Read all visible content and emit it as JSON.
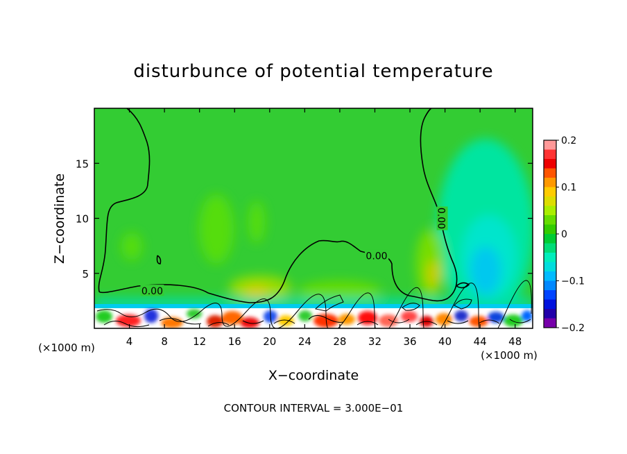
{
  "chart_data": {
    "type": "heatmap",
    "title": "disturbunce of potential temperature",
    "xlabel": "X−coordinate",
    "ylabel": "Z−coordinate",
    "x_unit_left": "(×1000 m)",
    "x_unit_right": "(×1000 m)",
    "footer": "CONTOUR INTERVAL = 3.000E−01",
    "xlim": [
      0,
      50
    ],
    "ylim": [
      0,
      20
    ],
    "x_ticks": [
      4,
      8,
      12,
      16,
      20,
      24,
      28,
      32,
      36,
      40,
      44,
      48
    ],
    "y_ticks": [
      5,
      10,
      15
    ],
    "contour_labels": [
      {
        "text": "0.00",
        "x": 6.6,
        "y": 3.4,
        "rotate": 0
      },
      {
        "text": "0.00",
        "x": 32.2,
        "y": 6.6,
        "rotate": 0
      },
      {
        "text": "0.00",
        "x": 39.6,
        "y": 10.0,
        "rotate": 90
      }
    ],
    "colorbar": {
      "min": -0.2,
      "max": 0.2,
      "tick_labels": [
        "0.2",
        "0.1",
        "0",
        "−0.1",
        "−0.2"
      ],
      "tick_values": [
        0.2,
        0.1,
        0,
        -0.1,
        -0.2
      ],
      "colors": [
        "#ff9999",
        "#ff3333",
        "#ee0000",
        "#ff5500",
        "#ff9900",
        "#ffcc00",
        "#dddd00",
        "#aaee00",
        "#66dd00",
        "#33cc00",
        "#00cc33",
        "#00dd77",
        "#00eebb",
        "#00dddd",
        "#00bbff",
        "#0088ff",
        "#0044ff",
        "#0011dd",
        "#2200aa",
        "#7700aa"
      ]
    },
    "field_background": "#33cc33",
    "grid": false
  }
}
